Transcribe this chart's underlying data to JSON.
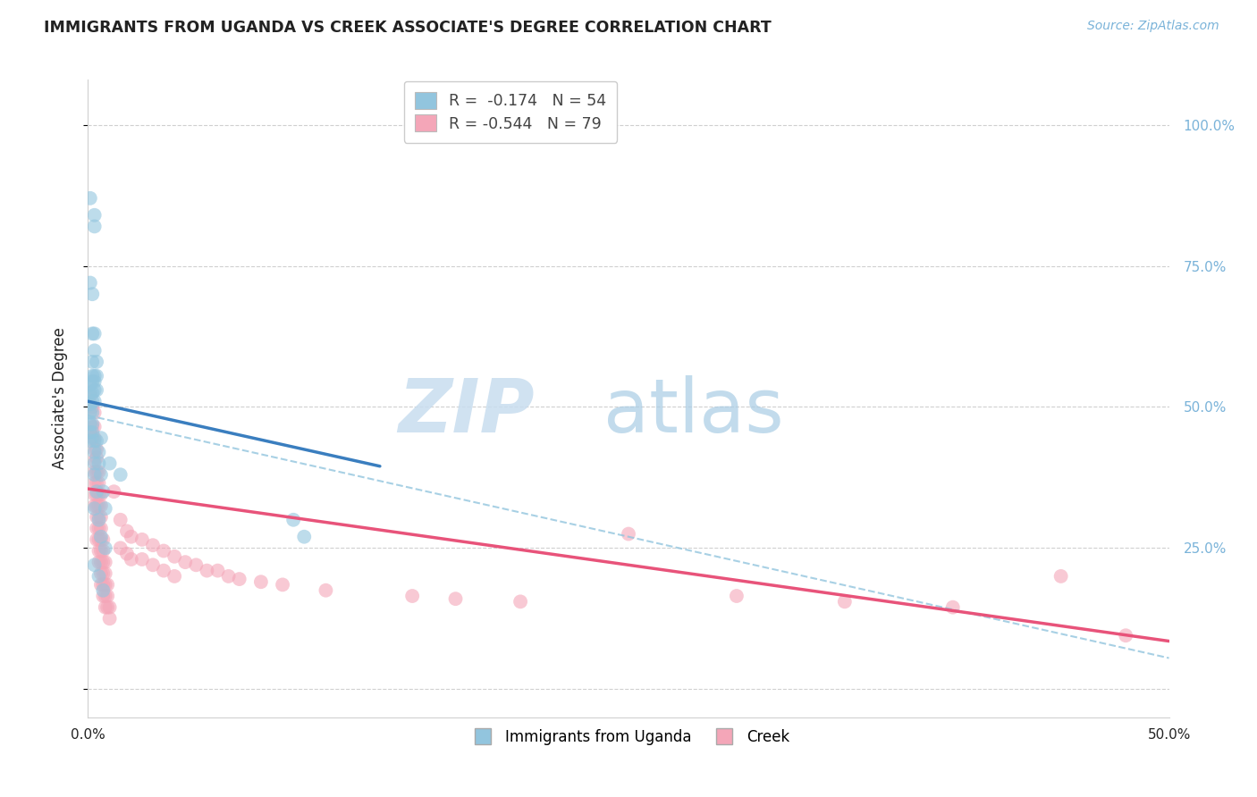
{
  "title": "IMMIGRANTS FROM UGANDA VS CREEK ASSOCIATE'S DEGREE CORRELATION CHART",
  "source": "Source: ZipAtlas.com",
  "ylabel": "Associate's Degree",
  "y_ticks": [
    0.0,
    0.25,
    0.5,
    0.75,
    1.0
  ],
  "y_tick_labels_left": [
    "",
    "",
    "",
    "",
    ""
  ],
  "y_tick_labels_right": [
    "",
    "25.0%",
    "50.0%",
    "75.0%",
    "100.0%"
  ],
  "xlim": [
    0.0,
    0.5
  ],
  "ylim": [
    -0.05,
    1.08
  ],
  "blue_color": "#92c5de",
  "pink_color": "#f4a6b8",
  "blue_line_color": "#3a7ebf",
  "pink_line_color": "#e8537a",
  "dashed_line_color": "#92c5de",
  "bg_color": "#ffffff",
  "grid_color": "#d0d0d0",
  "title_color": "#222222",
  "right_label_color": "#7ab3d9",
  "source_color": "#7ab3d9",
  "blue_line": {
    "x0": 0.0,
    "y0": 0.51,
    "x1": 0.135,
    "y1": 0.395
  },
  "pink_line": {
    "x0": 0.0,
    "y0": 0.355,
    "x1": 0.5,
    "y1": 0.085
  },
  "dashed_line": {
    "x0": 0.0,
    "y0": 0.485,
    "x1": 0.5,
    "y1": 0.055
  },
  "blue_scatter": [
    [
      0.001,
      0.87
    ],
    [
      0.003,
      0.84
    ],
    [
      0.003,
      0.82
    ],
    [
      0.001,
      0.72
    ],
    [
      0.002,
      0.7
    ],
    [
      0.002,
      0.63
    ],
    [
      0.003,
      0.63
    ],
    [
      0.002,
      0.58
    ],
    [
      0.003,
      0.6
    ],
    [
      0.004,
      0.58
    ],
    [
      0.002,
      0.555
    ],
    [
      0.003,
      0.555
    ],
    [
      0.004,
      0.555
    ],
    [
      0.001,
      0.54
    ],
    [
      0.002,
      0.545
    ],
    [
      0.003,
      0.545
    ],
    [
      0.001,
      0.525
    ],
    [
      0.002,
      0.525
    ],
    [
      0.003,
      0.53
    ],
    [
      0.004,
      0.53
    ],
    [
      0.001,
      0.505
    ],
    [
      0.002,
      0.51
    ],
    [
      0.003,
      0.51
    ],
    [
      0.001,
      0.49
    ],
    [
      0.002,
      0.49
    ],
    [
      0.001,
      0.47
    ],
    [
      0.002,
      0.47
    ],
    [
      0.001,
      0.455
    ],
    [
      0.002,
      0.455
    ],
    [
      0.001,
      0.44
    ],
    [
      0.003,
      0.44
    ],
    [
      0.004,
      0.44
    ],
    [
      0.006,
      0.445
    ],
    [
      0.003,
      0.42
    ],
    [
      0.005,
      0.42
    ],
    [
      0.003,
      0.4
    ],
    [
      0.005,
      0.4
    ],
    [
      0.003,
      0.38
    ],
    [
      0.006,
      0.38
    ],
    [
      0.004,
      0.35
    ],
    [
      0.007,
      0.35
    ],
    [
      0.003,
      0.32
    ],
    [
      0.008,
      0.32
    ],
    [
      0.005,
      0.3
    ],
    [
      0.006,
      0.27
    ],
    [
      0.008,
      0.25
    ],
    [
      0.003,
      0.22
    ],
    [
      0.005,
      0.2
    ],
    [
      0.007,
      0.175
    ],
    [
      0.01,
      0.4
    ],
    [
      0.015,
      0.38
    ],
    [
      0.095,
      0.3
    ],
    [
      0.1,
      0.27
    ]
  ],
  "pink_scatter": [
    [
      0.001,
      0.52
    ],
    [
      0.002,
      0.5
    ],
    [
      0.003,
      0.49
    ],
    [
      0.002,
      0.465
    ],
    [
      0.003,
      0.465
    ],
    [
      0.002,
      0.445
    ],
    [
      0.003,
      0.445
    ],
    [
      0.003,
      0.425
    ],
    [
      0.004,
      0.425
    ],
    [
      0.003,
      0.405
    ],
    [
      0.004,
      0.41
    ],
    [
      0.003,
      0.385
    ],
    [
      0.004,
      0.385
    ],
    [
      0.005,
      0.385
    ],
    [
      0.003,
      0.365
    ],
    [
      0.004,
      0.365
    ],
    [
      0.005,
      0.365
    ],
    [
      0.003,
      0.345
    ],
    [
      0.004,
      0.345
    ],
    [
      0.005,
      0.345
    ],
    [
      0.006,
      0.345
    ],
    [
      0.003,
      0.325
    ],
    [
      0.004,
      0.325
    ],
    [
      0.005,
      0.325
    ],
    [
      0.006,
      0.325
    ],
    [
      0.004,
      0.305
    ],
    [
      0.005,
      0.305
    ],
    [
      0.006,
      0.305
    ],
    [
      0.004,
      0.285
    ],
    [
      0.005,
      0.285
    ],
    [
      0.006,
      0.285
    ],
    [
      0.004,
      0.265
    ],
    [
      0.005,
      0.265
    ],
    [
      0.006,
      0.265
    ],
    [
      0.007,
      0.265
    ],
    [
      0.005,
      0.245
    ],
    [
      0.006,
      0.245
    ],
    [
      0.007,
      0.245
    ],
    [
      0.005,
      0.225
    ],
    [
      0.006,
      0.225
    ],
    [
      0.007,
      0.225
    ],
    [
      0.008,
      0.225
    ],
    [
      0.006,
      0.205
    ],
    [
      0.007,
      0.205
    ],
    [
      0.008,
      0.205
    ],
    [
      0.006,
      0.185
    ],
    [
      0.007,
      0.185
    ],
    [
      0.008,
      0.185
    ],
    [
      0.009,
      0.185
    ],
    [
      0.007,
      0.165
    ],
    [
      0.008,
      0.165
    ],
    [
      0.009,
      0.165
    ],
    [
      0.008,
      0.145
    ],
    [
      0.009,
      0.145
    ],
    [
      0.01,
      0.145
    ],
    [
      0.01,
      0.125
    ],
    [
      0.012,
      0.35
    ],
    [
      0.015,
      0.3
    ],
    [
      0.015,
      0.25
    ],
    [
      0.018,
      0.28
    ],
    [
      0.018,
      0.24
    ],
    [
      0.02,
      0.27
    ],
    [
      0.02,
      0.23
    ],
    [
      0.025,
      0.265
    ],
    [
      0.025,
      0.23
    ],
    [
      0.03,
      0.255
    ],
    [
      0.03,
      0.22
    ],
    [
      0.035,
      0.245
    ],
    [
      0.035,
      0.21
    ],
    [
      0.04,
      0.235
    ],
    [
      0.04,
      0.2
    ],
    [
      0.045,
      0.225
    ],
    [
      0.05,
      0.22
    ],
    [
      0.055,
      0.21
    ],
    [
      0.06,
      0.21
    ],
    [
      0.065,
      0.2
    ],
    [
      0.07,
      0.195
    ],
    [
      0.08,
      0.19
    ],
    [
      0.09,
      0.185
    ],
    [
      0.11,
      0.175
    ],
    [
      0.15,
      0.165
    ],
    [
      0.17,
      0.16
    ],
    [
      0.2,
      0.155
    ],
    [
      0.25,
      0.275
    ],
    [
      0.3,
      0.165
    ],
    [
      0.35,
      0.155
    ],
    [
      0.4,
      0.145
    ],
    [
      0.45,
      0.2
    ],
    [
      0.48,
      0.095
    ]
  ]
}
